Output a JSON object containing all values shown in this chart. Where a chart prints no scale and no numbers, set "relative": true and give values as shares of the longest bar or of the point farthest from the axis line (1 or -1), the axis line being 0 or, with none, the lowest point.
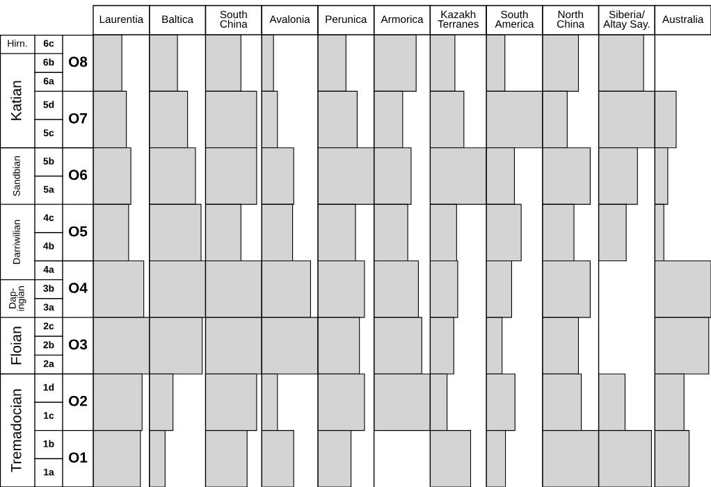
{
  "chart_data": [
    {
      "type": "other",
      "annotations": [
        "Hirn.",
        "Katian",
        "Sandbian",
        "Darriwilian",
        "Dap-\ningian",
        "Floian",
        "Tremadocian",
        "6c",
        "6b",
        "6a",
        "5d",
        "5c",
        "5b",
        "5a",
        "4c",
        "4b",
        "4a",
        "3b",
        "3a",
        "2c",
        "2b",
        "2a",
        "1d",
        "1c",
        "1b",
        "1a",
        "O8",
        "O7",
        "O6",
        "O5",
        "O4",
        "O3",
        "O2",
        "O1"
      ]
    },
    {
      "type": "bar",
      "orientation": "horizontal",
      "relative": true,
      "title": "Laurentia",
      "categories": [
        null,
        null,
        null,
        null,
        null,
        null,
        null,
        null
      ],
      "series": [
        {
          "color": "#d4d4d4",
          "values": [
            0.51,
            0.59,
            0.67,
            0.63,
            0.9,
            1,
            0.87,
            0.84
          ]
        }
      ]
    },
    {
      "type": "bar",
      "orientation": "horizontal",
      "relative": true,
      "title": "Baltica",
      "categories": [
        null,
        null,
        null,
        null,
        null,
        null,
        null,
        null
      ],
      "series": [
        {
          "color": "#d4d4d4",
          "values": [
            0.5,
            0.68,
            0.82,
            0.92,
            1,
            0.94,
            0.42,
            0.28
          ]
        }
      ]
    },
    {
      "type": "bar",
      "orientation": "horizontal",
      "relative": true,
      "title": "South\nChina",
      "categories": [
        null,
        null,
        null,
        null,
        null,
        null,
        null,
        null
      ],
      "series": [
        {
          "color": "#d4d4d4",
          "values": [
            0.63,
            0.91,
            0.91,
            0.63,
            1,
            1,
            0.91,
            0.74
          ]
        }
      ]
    },
    {
      "type": "bar",
      "orientation": "horizontal",
      "relative": true,
      "title": "Avalonia",
      "categories": [
        null,
        null,
        null,
        null,
        null,
        null,
        null,
        null
      ],
      "series": [
        {
          "color": "#d4d4d4",
          "values": [
            0.21,
            0.28,
            0.57,
            0.55,
            0.87,
            1,
            0.28,
            0.57
          ]
        }
      ]
    },
    {
      "type": "bar",
      "orientation": "horizontal",
      "relative": true,
      "title": "Perunica",
      "categories": [
        null,
        null,
        null,
        null,
        null,
        null,
        null,
        null
      ],
      "series": [
        {
          "color": "#d4d4d4",
          "values": [
            0.5,
            0.7,
            1,
            0.67,
            0.83,
            0.74,
            0.83,
            0.59
          ]
        }
      ]
    },
    {
      "type": "bar",
      "orientation": "horizontal",
      "relative": true,
      "title": "Armorica",
      "categories": [
        null,
        null,
        null,
        null,
        null,
        null,
        null,
        null
      ],
      "series": [
        {
          "color": "#d4d4d4",
          "values": [
            0.75,
            0.51,
            0.66,
            0.6,
            0.79,
            0.85,
            1,
            null
          ]
        }
      ]
    },
    {
      "type": "bar",
      "orientation": "horizontal",
      "relative": true,
      "title": "Kazakh\nTerranes",
      "categories": [
        null,
        null,
        null,
        null,
        null,
        null,
        null,
        null
      ],
      "series": [
        {
          "color": "#d4d4d4",
          "values": [
            0.44,
            0.6,
            1,
            0.47,
            0.49,
            0.42,
            0.3,
            0.72
          ]
        }
      ]
    },
    {
      "type": "bar",
      "orientation": "horizontal",
      "relative": true,
      "title": "South\nAmerica",
      "categories": [
        null,
        null,
        null,
        null,
        null,
        null,
        null,
        null
      ],
      "series": [
        {
          "color": "#d4d4d4",
          "values": [
            0.33,
            1,
            0.5,
            0.62,
            0.45,
            0.28,
            0.51,
            0.34
          ]
        }
      ]
    },
    {
      "type": "bar",
      "orientation": "horizontal",
      "relative": true,
      "title": "North\nChina",
      "categories": [
        null,
        null,
        null,
        null,
        null,
        null,
        null,
        null
      ],
      "series": [
        {
          "color": "#d4d4d4",
          "values": [
            0.64,
            0.44,
            0.85,
            0.56,
            0.85,
            0.64,
            0.69,
            1
          ]
        }
      ]
    },
    {
      "type": "bar",
      "orientation": "horizontal",
      "relative": true,
      "title": "Siberia/\nAltay Say.",
      "categories": [
        null,
        null,
        null,
        null,
        null,
        null,
        null,
        null
      ],
      "series": [
        {
          "color": "#d4d4d4",
          "values": [
            0.8,
            1,
            0.69,
            0.49,
            null,
            null,
            0.47,
            0.94
          ]
        }
      ]
    },
    {
      "type": "bar",
      "orientation": "horizontal",
      "relative": true,
      "title": "Australia",
      "categories": [
        null,
        null,
        null,
        null,
        null,
        null,
        null,
        null
      ],
      "series": [
        {
          "color": "#d4d4d4",
          "values": [
            null,
            0.38,
            0.23,
            0.16,
            1,
            0.96,
            0.52,
            0.61
          ]
        }
      ]
    }
  ]
}
